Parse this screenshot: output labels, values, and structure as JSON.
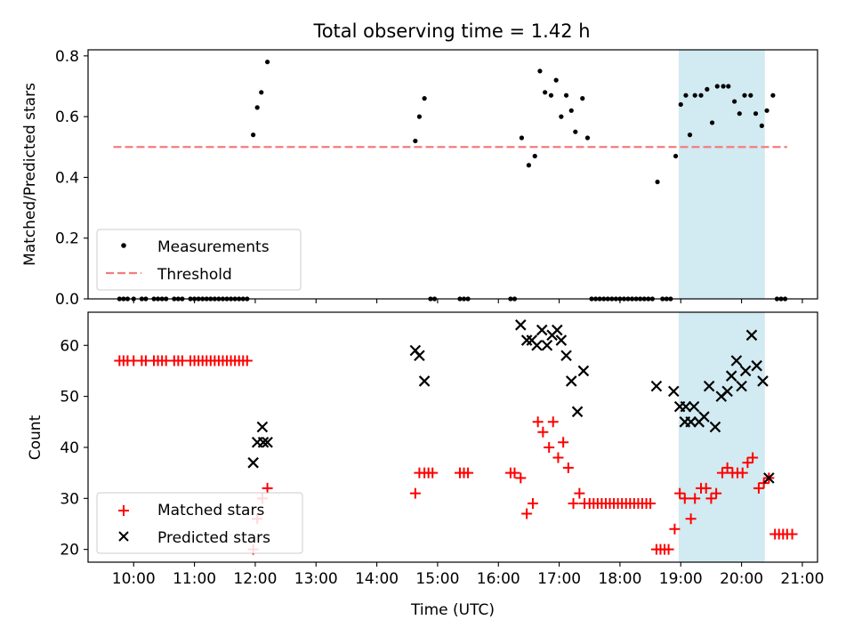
{
  "figure": {
    "title": "Total observing time = 1.42 h"
  },
  "colors": {
    "measurement": "#000000",
    "threshold": "#f47c7c",
    "matched": "#ff0000",
    "predicted": "#000000",
    "observing_window": "#add8e6"
  },
  "chart_data": [
    {
      "type": "scatter",
      "name": "ratio-panel",
      "xlim": [
        "09:15",
        "21:15"
      ],
      "ylim": [
        0,
        0.82
      ],
      "ylabel": "Matched/Predicted stars",
      "yticks": [
        0.0,
        0.2,
        0.4,
        0.6,
        0.8
      ],
      "ytick_labels": [
        "0.0",
        "0.2",
        "0.4",
        "0.6",
        "0.8"
      ],
      "observing_window": [
        "18:58",
        "20:23"
      ],
      "threshold": {
        "y": 0.5,
        "x_range": [
          "09:40",
          "20:45"
        ]
      },
      "legend": {
        "position": "lower-left",
        "entries": [
          "Measurements",
          "Threshold"
        ]
      },
      "series": [
        {
          "name": "Measurements",
          "marker": "dot",
          "points": [
            [
              "09:46",
              0
            ],
            [
              "09:50",
              0
            ],
            [
              "09:54",
              0
            ],
            [
              "10:00",
              0
            ],
            [
              "10:08",
              0
            ],
            [
              "10:12",
              0
            ],
            [
              "10:20",
              0
            ],
            [
              "10:24",
              0
            ],
            [
              "10:28",
              0
            ],
            [
              "10:32",
              0
            ],
            [
              "10:40",
              0
            ],
            [
              "10:44",
              0
            ],
            [
              "10:48",
              0
            ],
            [
              "10:56",
              0
            ],
            [
              "11:00",
              0
            ],
            [
              "11:04",
              0
            ],
            [
              "11:08",
              0
            ],
            [
              "11:12",
              0
            ],
            [
              "11:16",
              0
            ],
            [
              "11:20",
              0
            ],
            [
              "11:24",
              0
            ],
            [
              "11:28",
              0
            ],
            [
              "11:32",
              0
            ],
            [
              "11:36",
              0
            ],
            [
              "11:40",
              0
            ],
            [
              "11:44",
              0
            ],
            [
              "11:48",
              0
            ],
            [
              "11:52",
              0
            ],
            [
              "11:58",
              0.54
            ],
            [
              "12:02",
              0.63
            ],
            [
              "12:06",
              0.68
            ],
            [
              "12:12",
              0.78
            ],
            [
              "14:38",
              0.52
            ],
            [
              "14:42",
              0.6
            ],
            [
              "14:47",
              0.66
            ],
            [
              "14:53",
              0
            ],
            [
              "14:57",
              0
            ],
            [
              "15:22",
              0
            ],
            [
              "15:26",
              0
            ],
            [
              "15:30",
              0
            ],
            [
              "16:12",
              0
            ],
            [
              "16:16",
              0
            ],
            [
              "16:23",
              0.53
            ],
            [
              "16:30",
              0.44
            ],
            [
              "16:36",
              0.47
            ],
            [
              "16:41",
              0.75
            ],
            [
              "16:46",
              0.68
            ],
            [
              "16:52",
              0.67
            ],
            [
              "16:57",
              0.72
            ],
            [
              "17:02",
              0.6
            ],
            [
              "17:07",
              0.67
            ],
            [
              "17:12",
              0.62
            ],
            [
              "17:16",
              0.55
            ],
            [
              "17:23",
              0.66
            ],
            [
              "17:28",
              0.53
            ],
            [
              "17:32",
              0
            ],
            [
              "17:36",
              0
            ],
            [
              "17:40",
              0
            ],
            [
              "17:44",
              0
            ],
            [
              "17:48",
              0
            ],
            [
              "17:52",
              0
            ],
            [
              "17:56",
              0
            ],
            [
              "18:00",
              0
            ],
            [
              "18:04",
              0
            ],
            [
              "18:08",
              0
            ],
            [
              "18:12",
              0
            ],
            [
              "18:16",
              0
            ],
            [
              "18:20",
              0
            ],
            [
              "18:24",
              0
            ],
            [
              "18:28",
              0
            ],
            [
              "18:32",
              0
            ],
            [
              "18:37",
              0.385
            ],
            [
              "18:42",
              0
            ],
            [
              "18:46",
              0
            ],
            [
              "18:50",
              0
            ],
            [
              "18:55",
              0.47
            ],
            [
              "19:00",
              0.64
            ],
            [
              "19:05",
              0.67
            ],
            [
              "19:09",
              0.54
            ],
            [
              "19:14",
              0.67
            ],
            [
              "19:20",
              0.67
            ],
            [
              "19:26",
              0.69
            ],
            [
              "19:31",
              0.58
            ],
            [
              "19:36",
              0.7
            ],
            [
              "19:42",
              0.7
            ],
            [
              "19:47",
              0.7
            ],
            [
              "19:53",
              0.65
            ],
            [
              "19:58",
              0.61
            ],
            [
              "20:03",
              0.67
            ],
            [
              "20:09",
              0.67
            ],
            [
              "20:14",
              0.61
            ],
            [
              "20:20",
              0.57
            ],
            [
              "20:25",
              0.62
            ],
            [
              "20:31",
              0.67
            ],
            [
              "20:35",
              0
            ],
            [
              "20:39",
              0
            ],
            [
              "20:43",
              0
            ]
          ]
        }
      ]
    },
    {
      "type": "scatter",
      "name": "count-panel",
      "xlim": [
        "09:15",
        "21:15"
      ],
      "ylim": [
        17.5,
        66.5
      ],
      "ylabel": "Count",
      "xlabel": "Time (UTC)",
      "yticks": [
        20,
        30,
        40,
        50,
        60
      ],
      "ytick_labels": [
        "20",
        "30",
        "40",
        "50",
        "60"
      ],
      "xticks": [
        "10:00",
        "11:00",
        "12:00",
        "13:00",
        "14:00",
        "15:00",
        "16:00",
        "17:00",
        "18:00",
        "19:00",
        "20:00",
        "21:00"
      ],
      "xtick_labels": [
        "10:00",
        "11:00",
        "12:00",
        "13:00",
        "14:00",
        "15:00",
        "16:00",
        "17:00",
        "18:00",
        "19:00",
        "20:00",
        "21:00"
      ],
      "observing_window": [
        "18:58",
        "20:23"
      ],
      "legend": {
        "position": "lower-left",
        "entries": [
          "Matched stars",
          "Predicted stars"
        ]
      },
      "series": [
        {
          "name": "Matched stars",
          "marker": "plus",
          "points": [
            [
              "09:46",
              57
            ],
            [
              "09:50",
              57
            ],
            [
              "09:54",
              57
            ],
            [
              "10:00",
              57
            ],
            [
              "10:08",
              57
            ],
            [
              "10:12",
              57
            ],
            [
              "10:20",
              57
            ],
            [
              "10:24",
              57
            ],
            [
              "10:28",
              57
            ],
            [
              "10:32",
              57
            ],
            [
              "10:40",
              57
            ],
            [
              "10:44",
              57
            ],
            [
              "10:48",
              57
            ],
            [
              "10:56",
              57
            ],
            [
              "11:00",
              57
            ],
            [
              "11:04",
              57
            ],
            [
              "11:08",
              57
            ],
            [
              "11:12",
              57
            ],
            [
              "11:16",
              57
            ],
            [
              "11:20",
              57
            ],
            [
              "11:24",
              57
            ],
            [
              "11:28",
              57
            ],
            [
              "11:32",
              57
            ],
            [
              "11:36",
              57
            ],
            [
              "11:40",
              57
            ],
            [
              "11:44",
              57
            ],
            [
              "11:48",
              57
            ],
            [
              "11:52",
              57
            ],
            [
              "11:58",
              20
            ],
            [
              "12:02",
              26
            ],
            [
              "12:07",
              30
            ],
            [
              "12:12",
              32
            ],
            [
              "14:38",
              31
            ],
            [
              "14:42",
              35
            ],
            [
              "14:47",
              35
            ],
            [
              "14:51",
              35
            ],
            [
              "14:55",
              35
            ],
            [
              "15:22",
              35
            ],
            [
              "15:26",
              35
            ],
            [
              "15:30",
              35
            ],
            [
              "16:12",
              35
            ],
            [
              "16:16",
              35
            ],
            [
              "16:22",
              34
            ],
            [
              "16:28",
              27
            ],
            [
              "16:34",
              29
            ],
            [
              "16:39",
              45
            ],
            [
              "16:44",
              43
            ],
            [
              "16:50",
              40
            ],
            [
              "16:54",
              45
            ],
            [
              "16:59",
              38
            ],
            [
              "17:04",
              41
            ],
            [
              "17:09",
              36
            ],
            [
              "17:14",
              29
            ],
            [
              "17:20",
              31
            ],
            [
              "17:25",
              29
            ],
            [
              "17:30",
              29
            ],
            [
              "17:34",
              29
            ],
            [
              "17:38",
              29
            ],
            [
              "17:42",
              29
            ],
            [
              "17:46",
              29
            ],
            [
              "17:50",
              29
            ],
            [
              "17:54",
              29
            ],
            [
              "17:58",
              29
            ],
            [
              "18:02",
              29
            ],
            [
              "18:06",
              29
            ],
            [
              "18:10",
              29
            ],
            [
              "18:14",
              29
            ],
            [
              "18:18",
              29
            ],
            [
              "18:22",
              29
            ],
            [
              "18:26",
              29
            ],
            [
              "18:30",
              29
            ],
            [
              "18:36",
              20
            ],
            [
              "18:40",
              20
            ],
            [
              "18:44",
              20
            ],
            [
              "18:48",
              20
            ],
            [
              "18:54",
              24
            ],
            [
              "18:59",
              31
            ],
            [
              "19:04",
              30
            ],
            [
              "19:10",
              26
            ],
            [
              "19:14",
              30
            ],
            [
              "19:20",
              32
            ],
            [
              "19:25",
              32
            ],
            [
              "19:30",
              30
            ],
            [
              "19:35",
              31
            ],
            [
              "19:41",
              35
            ],
            [
              "19:46",
              36
            ],
            [
              "19:51",
              35
            ],
            [
              "19:56",
              35
            ],
            [
              "20:01",
              35
            ],
            [
              "20:06",
              37
            ],
            [
              "20:11",
              38
            ],
            [
              "20:17",
              32
            ],
            [
              "20:22",
              33
            ],
            [
              "20:27",
              34
            ],
            [
              "20:33",
              23
            ],
            [
              "20:37",
              23
            ],
            [
              "20:41",
              23
            ],
            [
              "20:45",
              23
            ],
            [
              "20:50",
              23
            ]
          ]
        },
        {
          "name": "Predicted stars",
          "marker": "x",
          "points": [
            [
              "11:58",
              37
            ],
            [
              "12:02",
              41
            ],
            [
              "12:07",
              44
            ],
            [
              "12:08",
              41
            ],
            [
              "12:12",
              41
            ],
            [
              "14:38",
              59
            ],
            [
              "14:42",
              58
            ],
            [
              "14:47",
              53
            ],
            [
              "16:22",
              64
            ],
            [
              "16:28",
              61
            ],
            [
              "16:33",
              61
            ],
            [
              "16:38",
              60
            ],
            [
              "16:43",
              63
            ],
            [
              "16:48",
              60
            ],
            [
              "16:53",
              62
            ],
            [
              "16:58",
              63
            ],
            [
              "17:02",
              61
            ],
            [
              "17:07",
              58
            ],
            [
              "17:12",
              53
            ],
            [
              "17:18",
              47
            ],
            [
              "17:24",
              55
            ],
            [
              "18:36",
              52
            ],
            [
              "18:53",
              51
            ],
            [
              "18:59",
              48
            ],
            [
              "19:04",
              45
            ],
            [
              "19:05",
              48
            ],
            [
              "19:10",
              45
            ],
            [
              "19:13",
              48
            ],
            [
              "19:18",
              45
            ],
            [
              "19:23",
              46
            ],
            [
              "19:28",
              52
            ],
            [
              "19:34",
              44
            ],
            [
              "19:40",
              50
            ],
            [
              "19:46",
              51
            ],
            [
              "19:50",
              54
            ],
            [
              "19:55",
              57
            ],
            [
              "20:00",
              52
            ],
            [
              "20:04",
              55
            ],
            [
              "20:10",
              62
            ],
            [
              "20:15",
              56
            ],
            [
              "20:21",
              53
            ],
            [
              "20:27",
              34
            ]
          ]
        }
      ]
    }
  ]
}
